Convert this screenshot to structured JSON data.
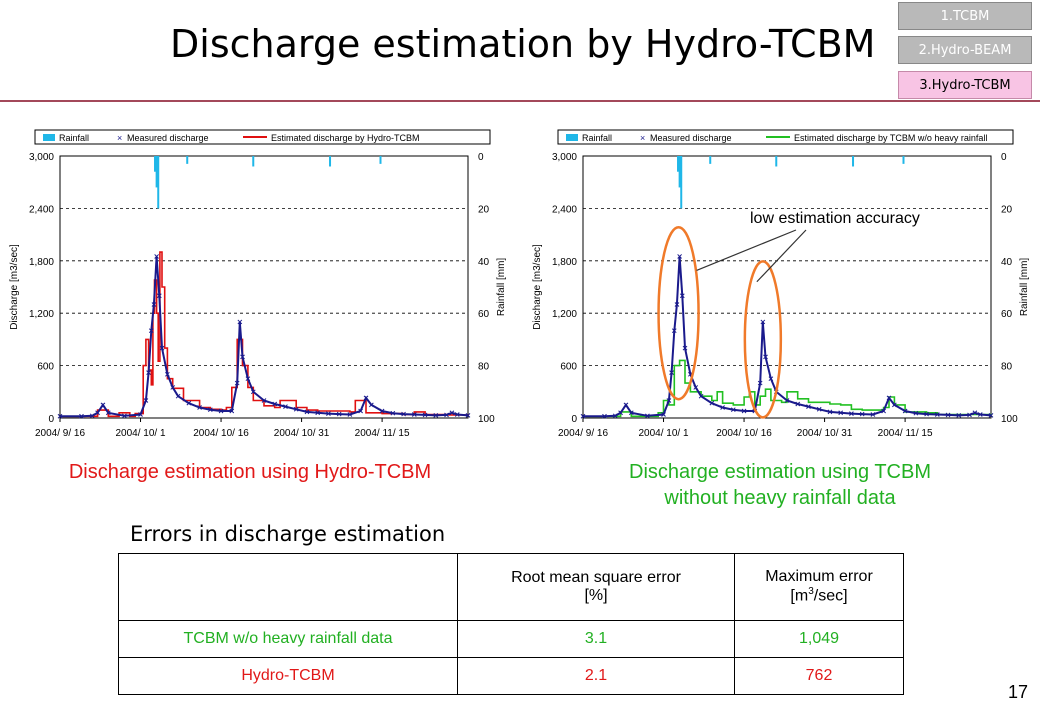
{
  "header": {
    "title": "Discharge estimation by Hydro-TCBM",
    "nav": [
      "1.TCBM",
      "2.Hydro-BEAM",
      "3.Hydro-TCBM"
    ],
    "active_nav": 2
  },
  "colors": {
    "rainfall": "#1fb7e8",
    "measured": "#1a1a8c",
    "estimated_left": "#e01010",
    "estimated_right": "#22c022",
    "ellipse": "#f07a2a",
    "title_rule": "#a3485a"
  },
  "charts": {
    "left": {
      "legend": [
        "Rainfall",
        "Measured discharge",
        "Estimated discharge by Hydro-TCBM"
      ],
      "caption": "Discharge estimation using Hydro-TCBM"
    },
    "right": {
      "legend": [
        "Rainfall",
        "Measured discharge",
        "Estimated discharge by TCBM w/o heavy rainfall"
      ],
      "caption_line1": "Discharge estimation using TCBM",
      "caption_line2": "without heavy rainfall data",
      "annotation": "low estimation accuracy"
    }
  },
  "chart_data": {
    "type": "line",
    "ylabel_left": "Discharge [m3/sec]",
    "ylabel_right": "Rainfall [mm]",
    "x_ticks": [
      "2004/ 9/ 16",
      "2004/ 10/ 1",
      "2004/ 10/ 16",
      "2004/ 10/ 31",
      "2004/ 11/ 15"
    ],
    "y_ticks_left": [
      "0",
      "600",
      "1,200",
      "1,800",
      "2,400",
      "3,000"
    ],
    "y_ticks_right": [
      "0",
      "20",
      "40",
      "60",
      "80",
      "100"
    ],
    "ylim": [
      0,
      3000
    ],
    "rain_lim": [
      0,
      100
    ],
    "measured": [
      [
        0,
        20
      ],
      [
        4,
        20
      ],
      [
        6,
        25
      ],
      [
        7,
        60
      ],
      [
        8,
        150
      ],
      [
        9,
        60
      ],
      [
        12,
        25
      ],
      [
        15,
        40
      ],
      [
        16,
        200
      ],
      [
        16.5,
        520
      ],
      [
        17,
        1000
      ],
      [
        17.5,
        1300
      ],
      [
        18,
        1850
      ],
      [
        18.5,
        1400
      ],
      [
        19,
        800
      ],
      [
        20,
        500
      ],
      [
        21,
        350
      ],
      [
        22,
        250
      ],
      [
        24,
        170
      ],
      [
        26,
        120
      ],
      [
        28,
        95
      ],
      [
        30,
        80
      ],
      [
        32,
        80
      ],
      [
        33,
        400
      ],
      [
        33.5,
        1100
      ],
      [
        34,
        700
      ],
      [
        35,
        450
      ],
      [
        36,
        300
      ],
      [
        38,
        200
      ],
      [
        40,
        160
      ],
      [
        42,
        130
      ],
      [
        44,
        100
      ],
      [
        46,
        70
      ],
      [
        48,
        60
      ],
      [
        50,
        50
      ],
      [
        52,
        45
      ],
      [
        54,
        40
      ],
      [
        56,
        80
      ],
      [
        57,
        230
      ],
      [
        58,
        150
      ],
      [
        60,
        80
      ],
      [
        62,
        55
      ],
      [
        64,
        45
      ],
      [
        66,
        40
      ],
      [
        68,
        35
      ],
      [
        70,
        30
      ],
      [
        72,
        35
      ],
      [
        73,
        60
      ],
      [
        74,
        40
      ],
      [
        76,
        30
      ]
    ],
    "estimated_hydro": [
      [
        0,
        20
      ],
      [
        6,
        20
      ],
      [
        7,
        90
      ],
      [
        8,
        90
      ],
      [
        9,
        20
      ],
      [
        10,
        20
      ],
      [
        11,
        60
      ],
      [
        12,
        60
      ],
      [
        13,
        20
      ],
      [
        14,
        50
      ],
      [
        15,
        50
      ],
      [
        15.5,
        600
      ],
      [
        16,
        900
      ],
      [
        16.5,
        550
      ],
      [
        17,
        380
      ],
      [
        17.3,
        1200
      ],
      [
        17.6,
        1580
      ],
      [
        18,
        1200
      ],
      [
        18.3,
        650
      ],
      [
        18.6,
        1900
      ],
      [
        19,
        1500
      ],
      [
        19.5,
        800
      ],
      [
        20,
        450
      ],
      [
        21,
        340
      ],
      [
        23,
        200
      ],
      [
        26,
        120
      ],
      [
        28,
        100
      ],
      [
        30,
        90
      ],
      [
        31,
        120
      ],
      [
        32,
        350
      ],
      [
        33,
        900
      ],
      [
        34,
        600
      ],
      [
        35,
        350
      ],
      [
        36,
        200
      ],
      [
        38,
        140
      ],
      [
        40,
        120
      ],
      [
        41,
        200
      ],
      [
        43,
        200
      ],
      [
        44,
        120
      ],
      [
        46,
        90
      ],
      [
        48,
        80
      ],
      [
        50,
        80
      ],
      [
        52,
        80
      ],
      [
        54,
        70
      ],
      [
        55,
        200
      ],
      [
        56,
        200
      ],
      [
        57,
        60
      ],
      [
        60,
        50
      ],
      [
        64,
        40
      ],
      [
        66,
        70
      ],
      [
        67,
        70
      ],
      [
        68,
        40
      ],
      [
        72,
        35
      ],
      [
        76,
        30
      ]
    ],
    "estimated_tcbm": [
      [
        0,
        20
      ],
      [
        6,
        20
      ],
      [
        7,
        70
      ],
      [
        8,
        70
      ],
      [
        9,
        20
      ],
      [
        14,
        60
      ],
      [
        15,
        200
      ],
      [
        16,
        150
      ],
      [
        17,
        600
      ],
      [
        18,
        660
      ],
      [
        19,
        400
      ],
      [
        20,
        300
      ],
      [
        22,
        250
      ],
      [
        24,
        200
      ],
      [
        25,
        300
      ],
      [
        26,
        170
      ],
      [
        28,
        150
      ],
      [
        30,
        240
      ],
      [
        31,
        300
      ],
      [
        32,
        150
      ],
      [
        33,
        250
      ],
      [
        34,
        330
      ],
      [
        35,
        200
      ],
      [
        37,
        180
      ],
      [
        38,
        300
      ],
      [
        40,
        220
      ],
      [
        42,
        180
      ],
      [
        44,
        180
      ],
      [
        46,
        160
      ],
      [
        48,
        150
      ],
      [
        50,
        100
      ],
      [
        52,
        90
      ],
      [
        54,
        90
      ],
      [
        56,
        120
      ],
      [
        57,
        240
      ],
      [
        58,
        150
      ],
      [
        60,
        70
      ],
      [
        64,
        60
      ],
      [
        66,
        40
      ],
      [
        70,
        40
      ],
      [
        76,
        30
      ]
    ],
    "rainfall": [
      [
        17.7,
        6
      ],
      [
        18.0,
        12
      ],
      [
        18.3,
        20
      ],
      [
        23.7,
        3
      ],
      [
        36.0,
        4
      ],
      [
        50.3,
        4
      ],
      [
        59.7,
        3
      ]
    ]
  },
  "table": {
    "title": "Errors in discharge estimation",
    "headers": [
      "",
      "Root mean square error [%]",
      "Maximum error [m3/sec]"
    ],
    "header_rmse_1": "Root mean square error",
    "header_rmse_2": "[%]",
    "header_max_1": "Maximum error",
    "header_max_2_pre": "[m",
    "header_max_2_sup": "3",
    "header_max_2_post": "/sec]",
    "rows": [
      {
        "name": "TCBM w/o heavy rainfall data",
        "rmse": "3.1",
        "max": "1,049"
      },
      {
        "name": "Hydro-TCBM",
        "rmse": "2.1",
        "max": "762"
      }
    ]
  },
  "page_number": "17"
}
